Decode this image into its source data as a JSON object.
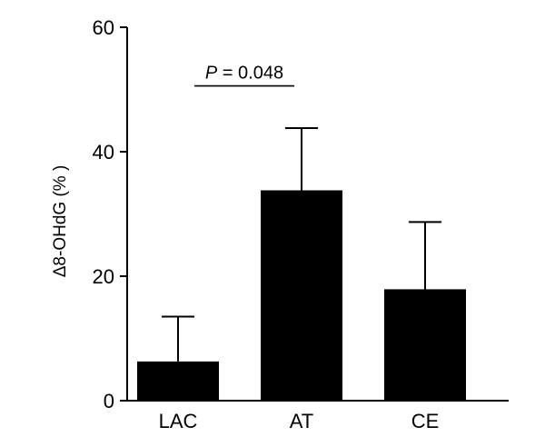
{
  "chart_data": {
    "type": "bar",
    "categories": [
      "LAC",
      "AT",
      "CE"
    ],
    "values": [
      6.3,
      33.8,
      17.9
    ],
    "errors": [
      7.2,
      10.0,
      10.8
    ],
    "ylabel": "Δ8-OHdG (% )",
    "xlabel": "",
    "ylim": [
      0,
      60
    ],
    "yticks": [
      0,
      20,
      40,
      60
    ],
    "grid": false,
    "legend": "none",
    "bar_color": "#000000",
    "annotations": [
      {
        "text_prefix": "P",
        "text_rest": " = 0.048",
        "from": "LAC",
        "to": "AT",
        "y": 53.5
      }
    ]
  }
}
